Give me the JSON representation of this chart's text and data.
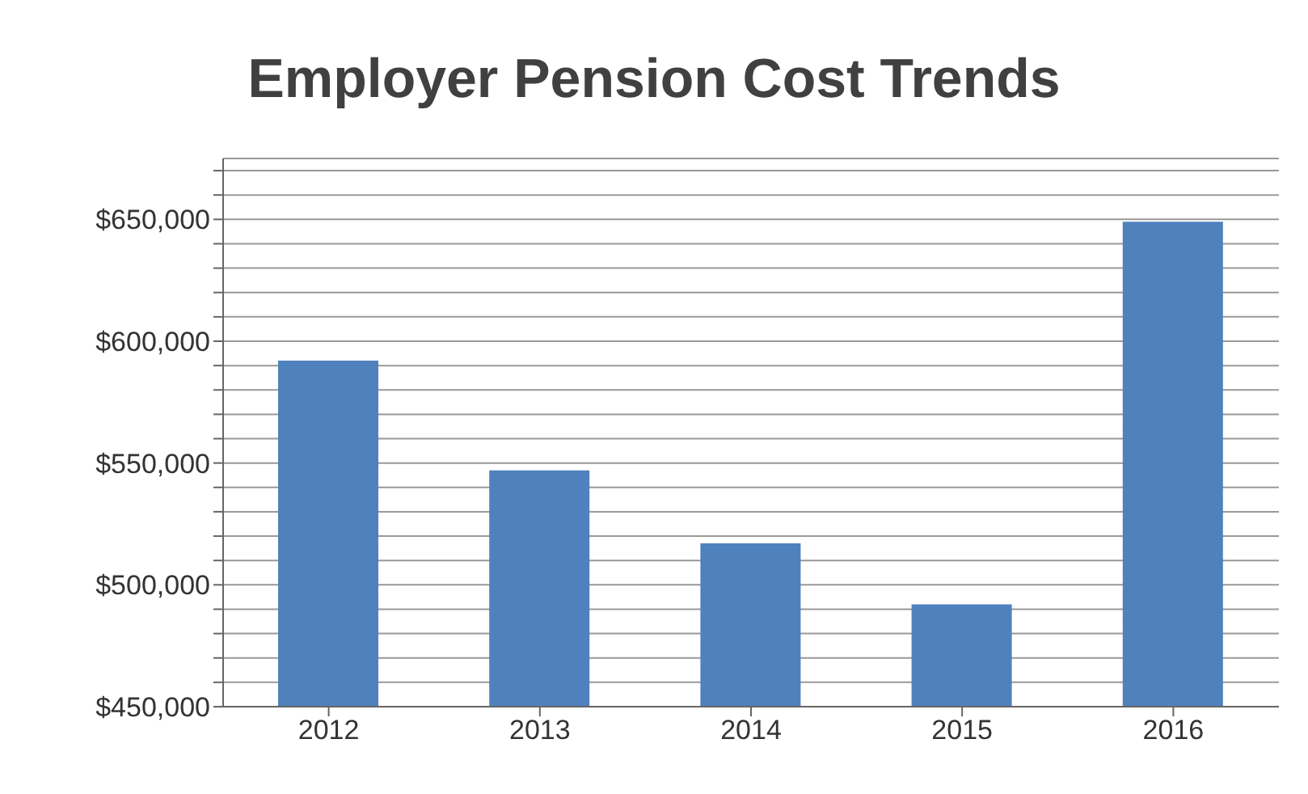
{
  "chart_data": {
    "type": "bar",
    "title": "Employer Pension Cost Trends",
    "categories": [
      "2012",
      "2013",
      "2014",
      "2015",
      "2016"
    ],
    "values": [
      592000,
      547000,
      517000,
      492000,
      649000
    ],
    "color": "#4f81bd",
    "ylim": [
      450000,
      675000
    ],
    "yticks": [
      {
        "value": 450000,
        "label": "$450,000"
      },
      {
        "value": 460000,
        "label": null
      },
      {
        "value": 470000,
        "label": null
      },
      {
        "value": 480000,
        "label": null
      },
      {
        "value": 490000,
        "label": null
      },
      {
        "value": 500000,
        "label": "$500,000"
      },
      {
        "value": 510000,
        "label": null
      },
      {
        "value": 520000,
        "label": null
      },
      {
        "value": 530000,
        "label": null
      },
      {
        "value": 540000,
        "label": null
      },
      {
        "value": 550000,
        "label": "$550,000"
      },
      {
        "value": 560000,
        "label": null
      },
      {
        "value": 570000,
        "label": null
      },
      {
        "value": 580000,
        "label": null
      },
      {
        "value": 590000,
        "label": null
      },
      {
        "value": 600000,
        "label": "$600,000"
      },
      {
        "value": 610000,
        "label": null
      },
      {
        "value": 620000,
        "label": null
      },
      {
        "value": 630000,
        "label": null
      },
      {
        "value": 640000,
        "label": null
      },
      {
        "value": 650000,
        "label": "$650,000"
      },
      {
        "value": 660000,
        "label": null
      },
      {
        "value": 670000,
        "label": null
      }
    ],
    "grid": "y"
  }
}
